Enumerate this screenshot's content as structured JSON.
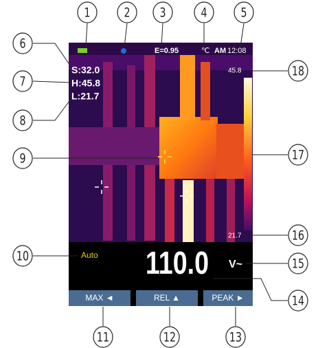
{
  "callouts": [
    "1",
    "2",
    "3",
    "4",
    "5",
    "6",
    "7",
    "8",
    "9",
    "10",
    "11",
    "12",
    "13",
    "14",
    "15",
    "16",
    "17",
    "18"
  ],
  "screen": {
    "status": {
      "emissivity": "E=0.95",
      "unit": "℃",
      "ampm": "AM",
      "time": "12:08"
    },
    "readings": [
      "S:32.0",
      "H:45.8",
      "L:21.7"
    ],
    "scale": {
      "max": "45.8",
      "min": "21.7"
    },
    "mode": "Auto",
    "value": "110.0",
    "unit": "V~",
    "buttons": [
      "MAX ◄",
      "REL ▲",
      "PEAK ►"
    ]
  }
}
